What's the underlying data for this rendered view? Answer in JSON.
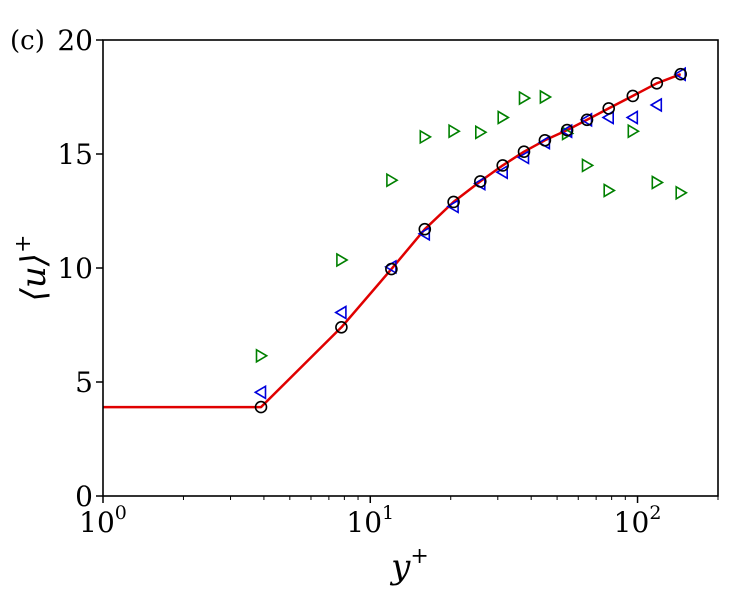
{
  "panel_label": "(c)",
  "chart_data": {
    "type": "scatter",
    "title": "",
    "xlabel": "y",
    "xlabel_sup": "+",
    "ylabel": "⟨u⟩",
    "ylabel_sup": "+",
    "x_scale": "log",
    "xlim": [
      1,
      200
    ],
    "ylim": [
      0,
      20
    ],
    "x_ticks": [
      {
        "base": "10",
        "exp": "0",
        "value": 1
      },
      {
        "base": "10",
        "exp": "1",
        "value": 10
      },
      {
        "base": "10",
        "exp": "2",
        "value": 100
      }
    ],
    "y_ticks": [
      {
        "label": "0",
        "value": 0
      },
      {
        "label": "5",
        "value": 5
      },
      {
        "label": "10",
        "value": 10
      },
      {
        "label": "15",
        "value": 15
      },
      {
        "label": "20",
        "value": 20
      }
    ],
    "grid": false,
    "legend": "none",
    "colors": {
      "line": "#e00000",
      "circles": "#000000",
      "left_triangles": "#0000dd",
      "right_triangles": "#008000"
    },
    "line": {
      "x": [
        1,
        3.9,
        7.8,
        12,
        16,
        20.5,
        25.8,
        31.3,
        37.6,
        45,
        54.5,
        64.7,
        78,
        96,
        118,
        145
      ],
      "y": [
        3.9,
        3.9,
        7.4,
        9.95,
        11.7,
        12.9,
        13.8,
        14.5,
        15.1,
        15.6,
        16.05,
        16.5,
        17.0,
        17.55,
        18.1,
        18.5
      ]
    },
    "series": [
      {
        "marker": "circle",
        "x": [
          3.9,
          7.8,
          12,
          16,
          20.5,
          25.8,
          31.3,
          37.6,
          45,
          54.5,
          64.7,
          78,
          96,
          118,
          145
        ],
        "y": [
          3.9,
          7.4,
          9.95,
          11.7,
          12.9,
          13.8,
          14.5,
          15.1,
          15.6,
          16.05,
          16.5,
          17.0,
          17.55,
          18.1,
          18.5
        ]
      },
      {
        "marker": "triangle-left",
        "x": [
          3.9,
          7.8,
          12,
          16,
          20.5,
          25.8,
          31.3,
          37.6,
          45,
          54.5,
          64.7,
          78,
          96,
          118,
          145
        ],
        "y": [
          4.55,
          8.05,
          10.05,
          11.5,
          12.7,
          13.7,
          14.2,
          14.85,
          15.5,
          16.0,
          16.5,
          16.6,
          16.6,
          17.15,
          18.5
        ]
      },
      {
        "marker": "triangle-right",
        "x": [
          3.9,
          7.8,
          12,
          16,
          20.5,
          25.8,
          31.3,
          37.6,
          45,
          54.5,
          64.7,
          78,
          96,
          118,
          145
        ],
        "y": [
          6.15,
          10.35,
          13.85,
          15.75,
          16.0,
          15.95,
          16.6,
          17.45,
          17.5,
          15.9,
          14.5,
          13.4,
          16.0,
          13.75,
          13.3
        ]
      }
    ]
  }
}
